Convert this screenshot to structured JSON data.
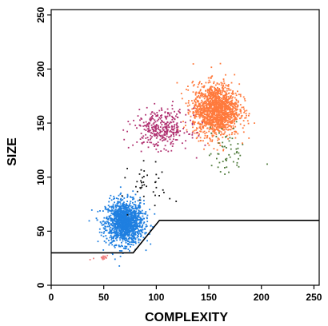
{
  "chart_data": {
    "type": "scatter",
    "xlabel": "COMPLEXITY",
    "ylabel": "SIZE",
    "xlim": [
      0,
      255
    ],
    "ylim": [
      0,
      255
    ],
    "x_ticks": [
      "0",
      "50",
      "100",
      "150",
      "200",
      "250"
    ],
    "y_ticks": [
      "0",
      "50",
      "100",
      "150",
      "200",
      "250"
    ],
    "grid": false,
    "legend": "none",
    "populations": [
      {
        "color": "#1E7FE0",
        "center": [
          70,
          58
        ],
        "spread": [
          9,
          10
        ],
        "count": 1400
      },
      {
        "color": "#FF7A3D",
        "center": [
          157,
          162
        ],
        "spread": [
          11,
          12
        ],
        "count": 1500
      },
      {
        "color": "#B03070",
        "center": [
          105,
          145
        ],
        "spread": [
          13,
          9
        ],
        "count": 350
      },
      {
        "color": "#4E7A3A",
        "center": [
          167,
          123
        ],
        "spread": [
          9,
          12
        ],
        "count": 55
      },
      {
        "color": "#111111",
        "center": [
          95,
          92
        ],
        "spread": [
          10,
          10
        ],
        "count": 40
      },
      {
        "color": "#F08080",
        "center": [
          48,
          26
        ],
        "spread": [
          4,
          2
        ],
        "count": 18
      }
    ],
    "gate_line": {
      "x": [
        0,
        78,
        103,
        255
      ],
      "y": [
        30,
        30,
        60,
        60
      ],
      "color": "#000000"
    }
  }
}
